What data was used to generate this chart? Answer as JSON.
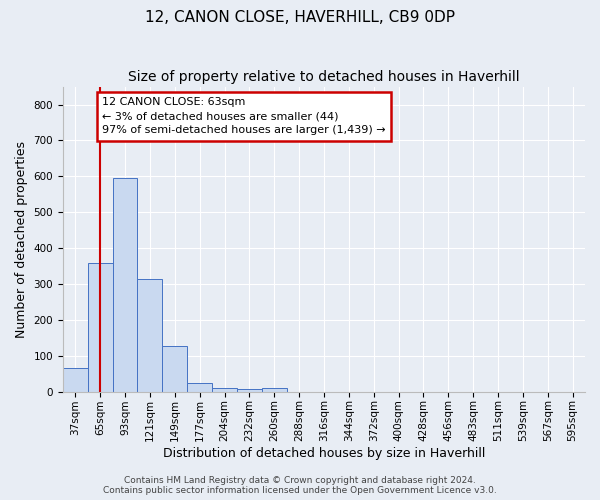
{
  "title": "12, CANON CLOSE, HAVERHILL, CB9 0DP",
  "subtitle": "Size of property relative to detached houses in Haverhill",
  "xlabel": "Distribution of detached houses by size in Haverhill",
  "ylabel": "Number of detached properties",
  "categories": [
    "37sqm",
    "65sqm",
    "93sqm",
    "121sqm",
    "149sqm",
    "177sqm",
    "204sqm",
    "232sqm",
    "260sqm",
    "288sqm",
    "316sqm",
    "344sqm",
    "372sqm",
    "400sqm",
    "428sqm",
    "456sqm",
    "483sqm",
    "511sqm",
    "539sqm",
    "567sqm",
    "595sqm"
  ],
  "values": [
    65,
    358,
    595,
    313,
    128,
    25,
    10,
    8,
    9,
    0,
    0,
    0,
    0,
    0,
    0,
    0,
    0,
    0,
    0,
    0,
    0
  ],
  "bar_color": "#c9d9f0",
  "bar_edge_color": "#4472c4",
  "annotation_line1": "12 CANON CLOSE: 63sqm",
  "annotation_line2": "← 3% of detached houses are smaller (44)",
  "annotation_line3": "97% of semi-detached houses are larger (1,439) →",
  "annotation_box_color": "#ffffff",
  "annotation_box_edge": "#cc0000",
  "vline_color": "#cc0000",
  "vline_x": 1.0,
  "ylim": [
    0,
    850
  ],
  "yticks": [
    0,
    100,
    200,
    300,
    400,
    500,
    600,
    700,
    800
  ],
  "background_color": "#e8edf4",
  "plot_background": "#e8edf4",
  "grid_color": "#ffffff",
  "footer_line1": "Contains HM Land Registry data © Crown copyright and database right 2024.",
  "footer_line2": "Contains public sector information licensed under the Open Government Licence v3.0.",
  "title_fontsize": 11,
  "subtitle_fontsize": 10,
  "xlabel_fontsize": 9,
  "ylabel_fontsize": 9,
  "tick_fontsize": 7.5,
  "annotation_fontsize": 8,
  "footer_fontsize": 6.5
}
